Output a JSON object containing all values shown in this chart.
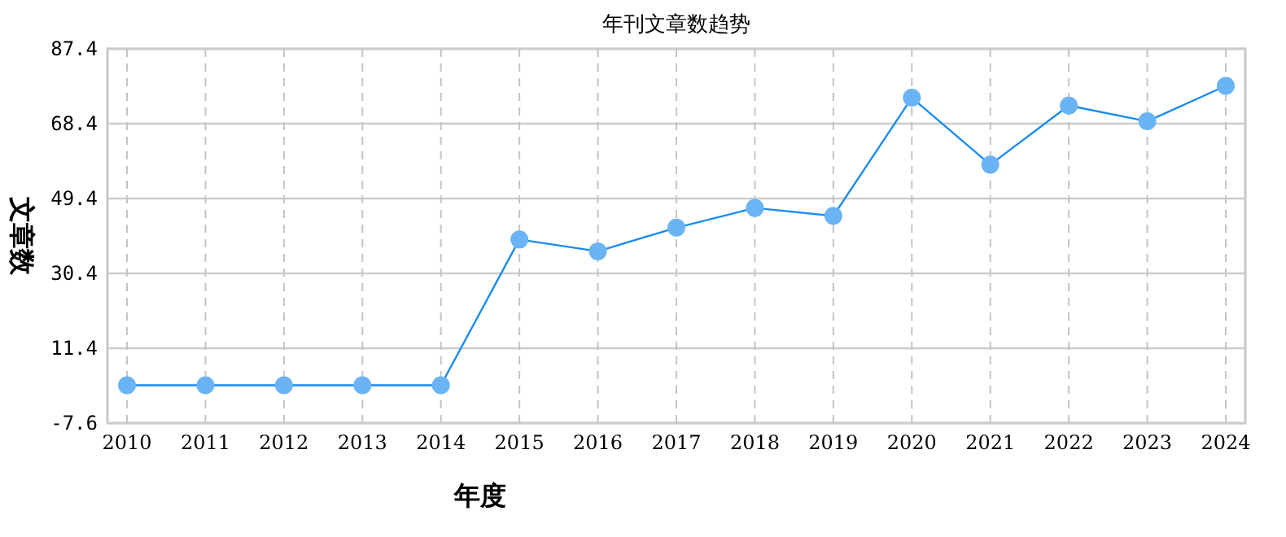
{
  "chart_data": {
    "type": "line",
    "title": "年刊文章数趋势",
    "xlabel": "年度",
    "ylabel": "文章数",
    "categories": [
      "2010",
      "2011",
      "2012",
      "2013",
      "2014",
      "2015",
      "2016",
      "2017",
      "2018",
      "2019",
      "2020",
      "2021",
      "2022",
      "2023",
      "2024"
    ],
    "series": [
      {
        "color": "#1a8cf0",
        "values": [
          2,
          2,
          2,
          2,
          2,
          39,
          36,
          42,
          47,
          45,
          75,
          58,
          73,
          69,
          78
        ]
      }
    ],
    "marker": "circle",
    "ylim": [
      -7.6,
      87.4
    ],
    "yticks": [
      -7.6,
      11.4,
      30.4,
      49.4,
      68.4,
      87.4
    ],
    "grid": true
  }
}
